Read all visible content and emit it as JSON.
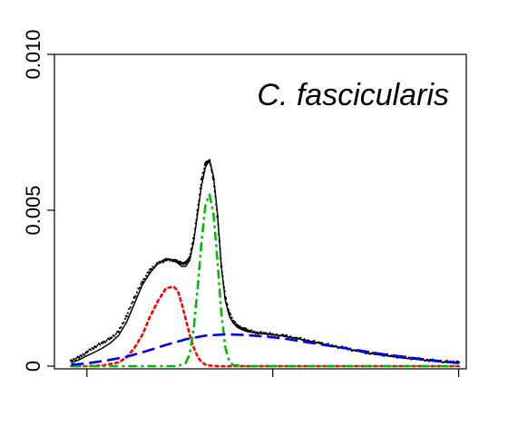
{
  "chart_data": {
    "type": "line",
    "title": "",
    "xlabel": "",
    "ylabel": "",
    "annotation": "C. fascicularis",
    "xlim": [
      0,
      100
    ],
    "ylim": [
      0,
      0.01
    ],
    "y_ticks": [
      0,
      0.005,
      0.01
    ],
    "y_tick_labels": [
      "0",
      "0.005",
      "0.010"
    ],
    "x_ticks": [
      5,
      52,
      99
    ],
    "x_tick_labels": [
      "",
      "",
      ""
    ],
    "grid": false,
    "legend": "none",
    "series": [
      {
        "style": "points",
        "color": "#000000",
        "x": [
          1,
          3,
          5,
          7,
          9,
          11,
          13,
          15,
          17,
          19,
          21,
          23,
          25,
          27,
          28,
          29,
          30,
          31,
          32,
          33,
          34,
          35,
          36,
          37,
          38,
          39,
          40,
          41,
          42,
          43,
          44,
          45,
          46,
          48,
          50,
          52,
          55,
          58,
          61,
          64,
          67,
          70,
          73,
          76,
          79,
          82,
          85,
          88,
          91,
          94,
          97,
          99
        ],
        "y": [
          0.00018,
          0.00028,
          0.00045,
          0.00062,
          0.00075,
          0.0009,
          0.0011,
          0.0016,
          0.0022,
          0.0027,
          0.0031,
          0.0033,
          0.0034,
          0.0034,
          0.00335,
          0.0033,
          0.0033,
          0.0035,
          0.0041,
          0.005,
          0.006,
          0.0065,
          0.0066,
          0.006,
          0.0048,
          0.0032,
          0.0022,
          0.0017,
          0.00145,
          0.0013,
          0.00122,
          0.00118,
          0.00113,
          0.00108,
          0.00105,
          0.00102,
          0.00097,
          0.0009,
          0.00082,
          0.00074,
          0.00066,
          0.00058,
          0.0005,
          0.00043,
          0.00038,
          0.00033,
          0.00028,
          0.00024,
          0.0002,
          0.00016,
          0.00014,
          0.00012
        ]
      },
      {
        "style": "solid",
        "color": "#000000",
        "x": [
          1,
          3,
          5,
          7,
          9,
          11,
          13,
          15,
          17,
          19,
          21,
          23,
          25,
          27,
          28,
          29,
          30,
          31,
          32,
          33,
          34,
          35,
          36,
          37,
          38,
          39,
          40,
          41,
          42,
          43,
          44,
          45,
          46,
          48,
          50,
          52,
          55,
          58,
          61,
          64,
          67,
          70,
          73,
          76,
          79,
          82,
          85,
          88,
          91,
          94,
          97,
          99
        ],
        "y": [
          0.0001,
          0.0002,
          0.00033,
          0.00045,
          0.00058,
          0.00075,
          0.00098,
          0.0014,
          0.002,
          0.0026,
          0.003,
          0.0033,
          0.00345,
          0.0034,
          0.0033,
          0.0032,
          0.0032,
          0.0034,
          0.004,
          0.0049,
          0.0058,
          0.0064,
          0.0066,
          0.0061,
          0.0049,
          0.0032,
          0.0021,
          0.0016,
          0.00138,
          0.00125,
          0.00118,
          0.00113,
          0.0011,
          0.00106,
          0.00104,
          0.00101,
          0.00096,
          0.00089,
          0.00081,
          0.00073,
          0.00065,
          0.00057,
          0.00049,
          0.00042,
          0.00036,
          0.00031,
          0.00026,
          0.00022,
          0.00018,
          0.00014,
          0.00011,
          0.0001
        ]
      },
      {
        "style": "dotted",
        "color": "#ff0000",
        "x": [
          1,
          5,
          9,
          13,
          15,
          17,
          19,
          21,
          23,
          25,
          27,
          28,
          29,
          30,
          31,
          32,
          33,
          34,
          35,
          36,
          38,
          40,
          45,
          55,
          70,
          99
        ],
        "y": [
          0,
          0,
          2e-05,
          0.00012,
          0.00028,
          0.00058,
          0.001,
          0.0016,
          0.0021,
          0.0025,
          0.00255,
          0.0024,
          0.002,
          0.0015,
          0.001,
          0.0006,
          0.0003,
          0.00013,
          5e-05,
          2e-05,
          0,
          0,
          0,
          0,
          0,
          0
        ]
      },
      {
        "style": "dashdot",
        "color": "#00bb00",
        "x": [
          1,
          20,
          28,
          30,
          31,
          32,
          33,
          34,
          35,
          36,
          37,
          38,
          39,
          40,
          41,
          42,
          45,
          60,
          99
        ],
        "y": [
          0,
          0,
          0,
          0.0001,
          0.0004,
          0.0012,
          0.0025,
          0.004,
          0.0052,
          0.0055,
          0.0049,
          0.0034,
          0.0017,
          0.0006,
          0.00015,
          3e-05,
          0,
          0,
          0
        ]
      },
      {
        "style": "dashed",
        "color": "#0000ee",
        "x": [
          1,
          5,
          10,
          15,
          20,
          25,
          30,
          35,
          40,
          45,
          50,
          55,
          60,
          65,
          70,
          75,
          80,
          85,
          90,
          95,
          99
        ],
        "y": [
          4e-05,
          9e-05,
          0.00018,
          0.0003,
          0.00048,
          0.00068,
          0.00086,
          0.00098,
          0.00102,
          0.001,
          0.00095,
          0.00088,
          0.00078,
          0.00068,
          0.00058,
          0.00048,
          0.00038,
          0.0003,
          0.00022,
          0.00015,
          0.0001
        ]
      }
    ]
  }
}
